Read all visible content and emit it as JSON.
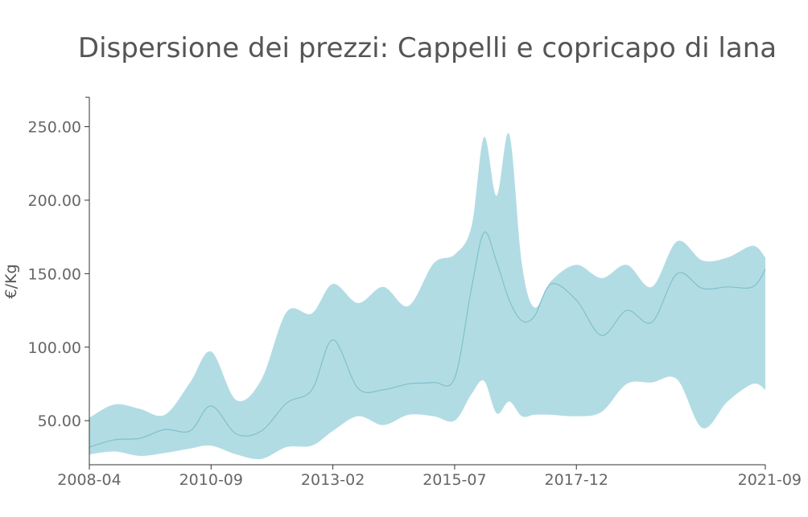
{
  "chart_data": {
    "type": "area",
    "title": "Dispersione dei prezzi: Cappelli e copricapo di lana",
    "ylabel": "€/Kg",
    "xlabel": "",
    "ylim": [
      20,
      270
    ],
    "x_ticks": [
      "2008-04",
      "2010-09",
      "2013-02",
      "2015-07",
      "2017-12",
      "2021-09"
    ],
    "y_ticks": [
      "50.00",
      "100.00",
      "150.00",
      "200.00",
      "250.00"
    ],
    "grid": false,
    "legend": "none",
    "colors": {
      "band": "#b2dce4",
      "median": "#7fc1cc",
      "axis": "#333333",
      "text": "#666666"
    },
    "x": [
      "2008-04",
      "2008-10",
      "2009-04",
      "2009-10",
      "2010-04",
      "2010-09",
      "2011-03",
      "2011-09",
      "2012-03",
      "2012-09",
      "2013-02",
      "2013-08",
      "2014-02",
      "2014-08",
      "2015-02",
      "2015-07",
      "2015-11",
      "2016-02",
      "2016-05",
      "2016-08",
      "2016-11",
      "2017-02",
      "2017-06",
      "2017-12",
      "2018-06",
      "2018-12",
      "2019-06",
      "2019-12",
      "2020-06",
      "2020-12",
      "2021-06",
      "2021-09"
    ],
    "series": [
      {
        "values": [
          52,
          61,
          58,
          54,
          76,
          97,
          64,
          78,
          124,
          123,
          143,
          130,
          141,
          128,
          157,
          163,
          182,
          243,
          203,
          245,
          157,
          127,
          145,
          156,
          147,
          156,
          141,
          172,
          159,
          161,
          169,
          161
        ]
      },
      {
        "values": [
          32,
          37,
          38,
          44,
          43,
          60,
          41,
          43,
          62,
          71,
          105,
          72,
          71,
          75,
          76,
          79,
          140,
          178,
          158,
          132,
          118,
          121,
          143,
          132,
          108,
          125,
          117,
          150,
          140,
          141,
          141,
          153
        ]
      },
      {
        "values": [
          27,
          29,
          26,
          28,
          31,
          33,
          27,
          24,
          32,
          33,
          43,
          53,
          47,
          54,
          53,
          50,
          68,
          77,
          55,
          63,
          53,
          54,
          54,
          53,
          56,
          75,
          76,
          78,
          45,
          63,
          75,
          71
        ]
      }
    ]
  }
}
